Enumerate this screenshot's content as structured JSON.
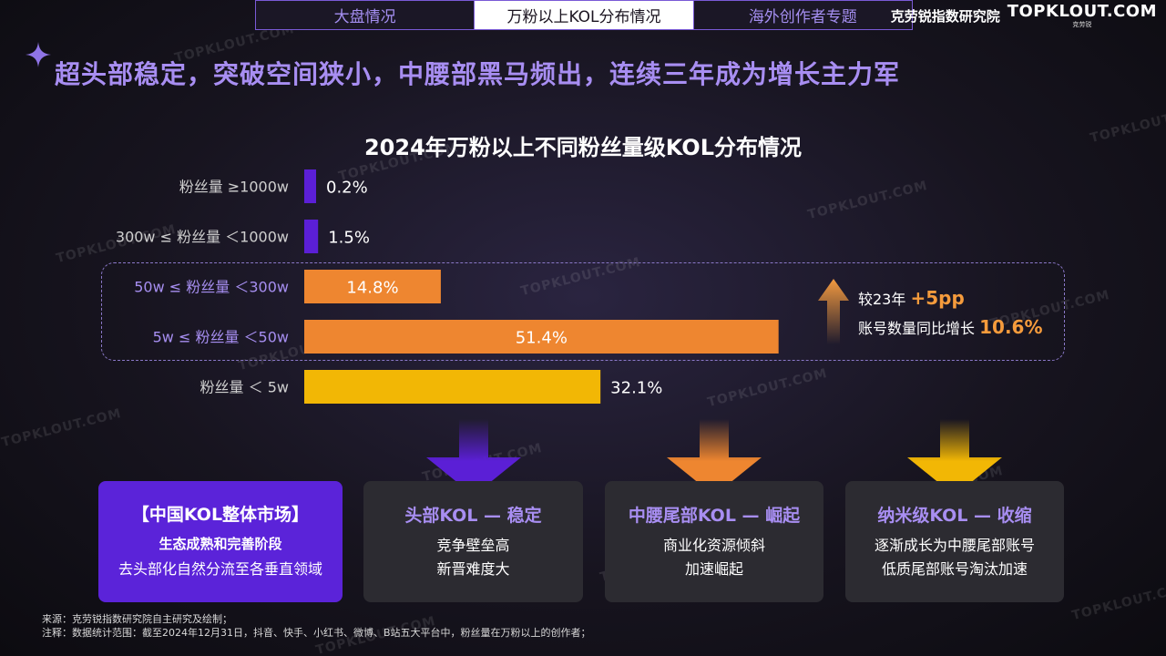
{
  "tabs": [
    {
      "label": "大盘情况",
      "active": false
    },
    {
      "label": "万粉以上KOL分布情况",
      "active": true
    },
    {
      "label": "海外创作者专题",
      "active": false
    }
  ],
  "brand": {
    "name_cn": "克劳锐指数研究院",
    "logo_text": "TOPKLOUT.COM",
    "logo_sub": "克劳锐"
  },
  "watermark": "TOPKLOUT.COM",
  "headline": "超头部稳定，突破空间狭小，中腰部黑马频出，连续三年成为增长主力军",
  "chart_data": {
    "type": "bar",
    "orientation": "horizontal",
    "title": "2024年万粉以上不同粉丝量级KOL分布情况",
    "unit": "%",
    "categories": [
      "粉丝量 ≥1000w",
      "300w ≤ 粉丝量 ＜1000w",
      "50w ≤ 粉丝量 ＜300w",
      "5w ≤ 粉丝量 ＜50w",
      "粉丝量 ＜ 5w"
    ],
    "values": [
      0.2,
      1.5,
      14.8,
      51.4,
      32.1
    ],
    "value_labels": [
      "0.2%",
      "1.5%",
      "14.8%",
      "51.4%",
      "32.1%"
    ],
    "colors": [
      "#5b1fd6",
      "#5b1fd6",
      "#ee8630",
      "#ee8630",
      "#f2b705"
    ],
    "highlighted": [
      false,
      false,
      true,
      true,
      false
    ],
    "grid": false
  },
  "annotation": {
    "line1_prefix": "较23年",
    "line1_value": "+5pp",
    "line2_prefix": "账号数量同比增长",
    "line2_value": "10.6%"
  },
  "cards": {
    "main": {
      "title": "【中国KOL整体市场】",
      "line1": "生态成熟和完善阶段",
      "line2": "去头部化自然分流至各垂直领域"
    },
    "head": {
      "title": "头部KOL — 稳定",
      "line1": "竞争壁垒高",
      "line2": "新晋难度大"
    },
    "mid": {
      "title": "中腰尾部KOL — 崛起",
      "line1": "商业化资源倾斜",
      "line2": "加速崛起"
    },
    "nano": {
      "title": "纳米级KOL — 收缩",
      "line1": "逐渐成长为中腰尾部账号",
      "line2": "低质尾部账号淘汰加速"
    }
  },
  "arrow_colors": {
    "head": "#5b1fd6",
    "mid": "#ee8630",
    "nano": "#f2b705"
  },
  "footnote": {
    "source": "来源：克劳锐指数研究院自主研究及绘制；",
    "note": "注释：数据统计范围：截至2024年12月31日，抖音、快手、小红书、微博、B站五大平台中，粉丝量在万粉以上的创作者；"
  }
}
